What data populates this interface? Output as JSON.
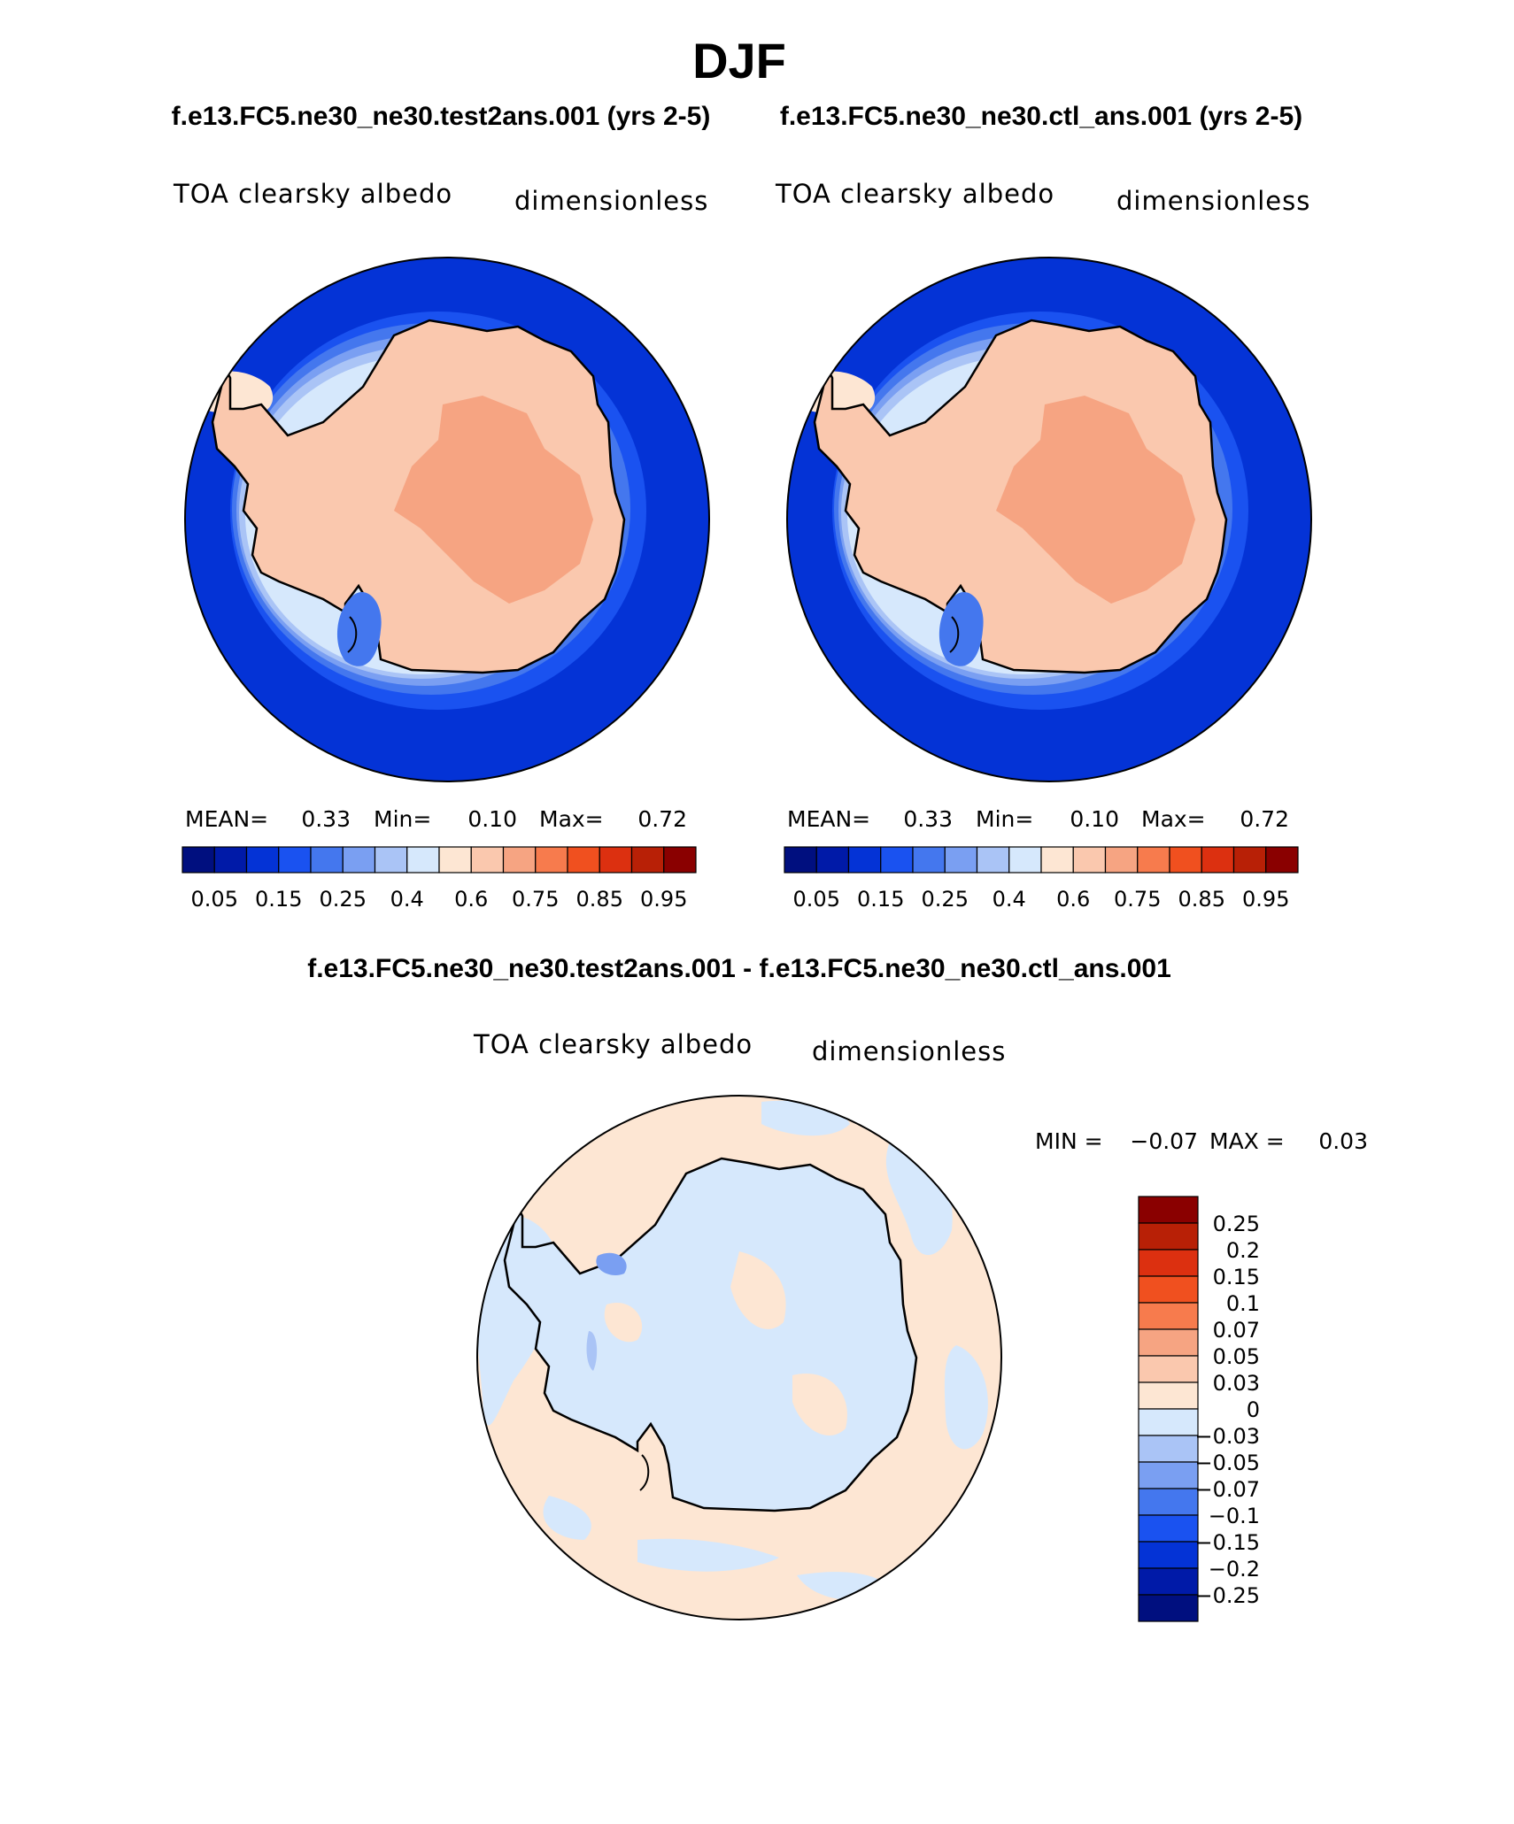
{
  "figure": {
    "season": "DJF",
    "top_header_left": "f.e13.FC5.ne30_ne30.test2ans.001 (yrs 2-5)",
    "top_header_right": "f.e13.FC5.ne30_ne30.ctl_ans.001 (yrs 2-5)",
    "diff_header": "f.e13.FC5.ne30_ne30.test2ans.001 - f.e13.FC5.ne30_ne30.ctl_ans.001"
  },
  "chart_data": [
    {
      "type": "heatmap",
      "projection": "south-polar-stereographic",
      "variable_label": "TOA clearsky albedo",
      "units_label": "dimensionless",
      "stats": {
        "mean_label": "MEAN=",
        "mean": "0.33",
        "min_label": "Min=",
        "min": "0.10",
        "max_label": "Max=",
        "max": "0.72"
      },
      "levels": [
        0.05,
        0.1,
        0.15,
        0.2,
        0.25,
        0.3,
        0.4,
        0.5,
        0.6,
        0.7,
        0.75,
        0.8,
        0.85,
        0.9,
        0.95
      ],
      "level_tick_labels": [
        "0.05",
        "0.15",
        "0.25",
        "0.4",
        "0.6",
        "0.75",
        "0.85",
        "0.95"
      ],
      "colors": [
        "#000f7f",
        "#001aa8",
        "#0433d6",
        "#1a52f0",
        "#4477ee",
        "#7a9ff2",
        "#aac4f6",
        "#d6e8fc",
        "#fde6d3",
        "#fac8ae",
        "#f6a482",
        "#f77b4d",
        "#f0501f",
        "#dc3010",
        "#b82006",
        "#8a0000"
      ],
      "field_description": "Ocean ~0.10 (blue), sea-ice fringe 0.15-0.4, Antarctic ice sheet 0.6-0.72"
    },
    {
      "type": "heatmap",
      "projection": "south-polar-stereographic",
      "variable_label": "TOA clearsky albedo",
      "units_label": "dimensionless",
      "stats": {
        "mean_label": "MEAN=",
        "mean": "0.33",
        "min_label": "Min=",
        "min": "0.10",
        "max_label": "Max=",
        "max": "0.72"
      },
      "levels": [
        0.05,
        0.1,
        0.15,
        0.2,
        0.25,
        0.3,
        0.4,
        0.5,
        0.6,
        0.7,
        0.75,
        0.8,
        0.85,
        0.9,
        0.95
      ],
      "level_tick_labels": [
        "0.05",
        "0.15",
        "0.25",
        "0.4",
        "0.6",
        "0.75",
        "0.85",
        "0.95"
      ],
      "colors": [
        "#000f7f",
        "#001aa8",
        "#0433d6",
        "#1a52f0",
        "#4477ee",
        "#7a9ff2",
        "#aac4f6",
        "#d6e8fc",
        "#fde6d3",
        "#fac8ae",
        "#f6a482",
        "#f77b4d",
        "#f0501f",
        "#dc3010",
        "#b82006",
        "#8a0000"
      ]
    },
    {
      "type": "heatmap",
      "projection": "south-polar-stereographic",
      "variable_label": "TOA clearsky albedo",
      "units_label": "dimensionless",
      "stats": {
        "min_label": "MIN =",
        "min": "−0.07",
        "max_label": "MAX =",
        "max": "0.03"
      },
      "levels_labels": [
        "0.25",
        "0.2",
        "0.15",
        "0.1",
        "0.07",
        "0.05",
        "0.03",
        "0",
        "−0.03",
        "−0.05",
        "−0.07",
        "−0.1",
        "−0.15",
        "−0.2",
        "−0.25"
      ],
      "colors_top_to_bottom": [
        "#8a0000",
        "#b82006",
        "#dc3010",
        "#f0501f",
        "#f77b4d",
        "#f6a482",
        "#fac8ae",
        "#fde6d3",
        "#d6e8fc",
        "#aac4f6",
        "#7a9ff2",
        "#4477ee",
        "#1a52f0",
        "#0433d6",
        "#001aa8",
        "#000f7f"
      ]
    }
  ]
}
